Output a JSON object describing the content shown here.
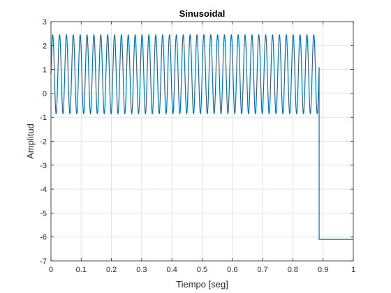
{
  "chart_data": {
    "type": "line",
    "title": "Sinusoidal",
    "xlabel": "Tiempo [seg]",
    "ylabel": "Amplitud",
    "xlim": [
      0,
      1
    ],
    "ylim": [
      -7,
      3
    ],
    "xticks": [
      0,
      0.1,
      0.2,
      0.3,
      0.4,
      0.5,
      0.6,
      0.7,
      0.8,
      0.9,
      1
    ],
    "xtick_labels": [
      "0",
      "0.1",
      "0.2",
      "0.3",
      "0.4",
      "0.5",
      "0.6",
      "0.7",
      "0.8",
      "0.9",
      "1"
    ],
    "yticks": [
      -7,
      -6,
      -5,
      -4,
      -3,
      -2,
      -1,
      0,
      1,
      2,
      3
    ],
    "ytick_labels": [
      "-7",
      "-6",
      "-5",
      "-4",
      "-3",
      "-2",
      "-1",
      "0",
      "1",
      "2",
      "3"
    ],
    "grid": true,
    "series": [
      {
        "color": "#0072BD",
        "signal": {
          "kind": "sinusoid",
          "offset": 0.8,
          "amplitude": 1.65,
          "frequency_hz": 44,
          "start": 0,
          "end": 0.887
        },
        "after": {
          "step_from": 0.887,
          "value": -6.1,
          "until": 1.0
        }
      }
    ]
  }
}
